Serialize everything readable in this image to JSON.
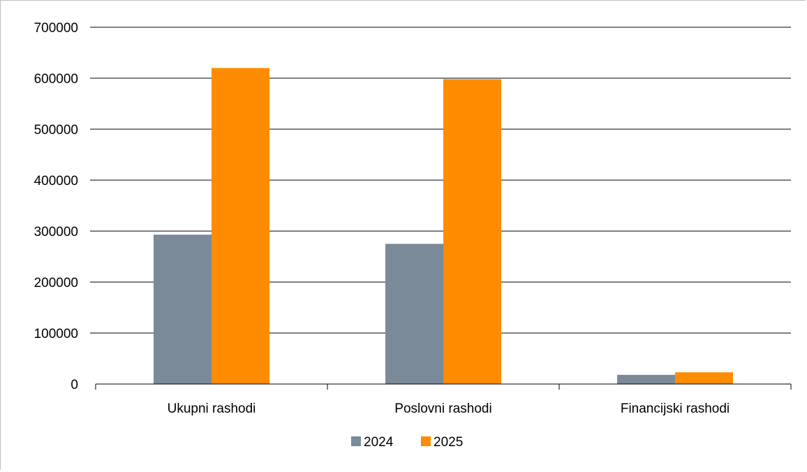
{
  "chart_data": {
    "type": "bar",
    "title": "",
    "xlabel": "",
    "ylabel": "",
    "categories": [
      "Ukupni rashodi",
      "Poslovni rashodi",
      "Financijski rashodi"
    ],
    "series": [
      {
        "name": "2024",
        "color": "#7a8a99",
        "values": [
          293000,
          275000,
          18000
        ]
      },
      {
        "name": "2025",
        "color": "#ff8c00",
        "values": [
          620000,
          598000,
          23000
        ]
      }
    ],
    "ylim": [
      0,
      700000
    ],
    "yticks": [
      "0",
      "100000",
      "200000",
      "300000",
      "400000",
      "500000",
      "600000",
      "700000"
    ],
    "grid": true,
    "legend_position": "bottom"
  }
}
